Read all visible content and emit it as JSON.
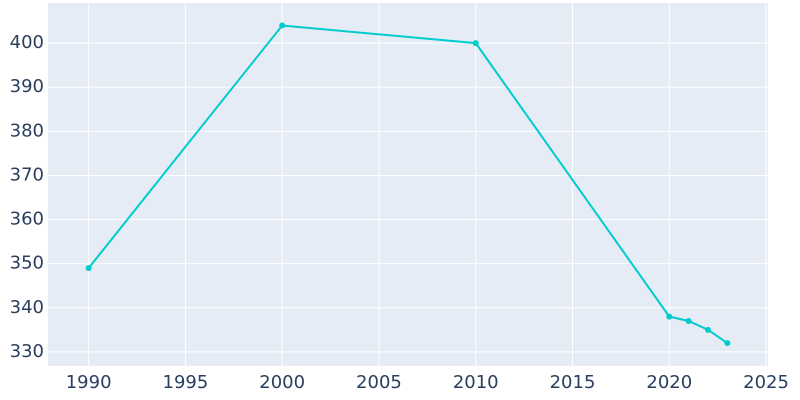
{
  "chart_data": {
    "type": "line",
    "x": [
      1990,
      2000,
      2010,
      2020,
      2021,
      2022,
      2023
    ],
    "series": [
      {
        "color": "#00cccc",
        "values": [
          349,
          404,
          400,
          338,
          337,
          335,
          332
        ]
      }
    ],
    "xlim": [
      1987.9,
      2025.1
    ],
    "xticks": [
      1990,
      1995,
      2000,
      2005,
      2010,
      2015,
      2020,
      2025
    ],
    "ylim": [
      326.8,
      409.1
    ],
    "yticks": [
      330,
      340,
      350,
      360,
      370,
      380,
      390,
      400
    ],
    "grid": true
  }
}
